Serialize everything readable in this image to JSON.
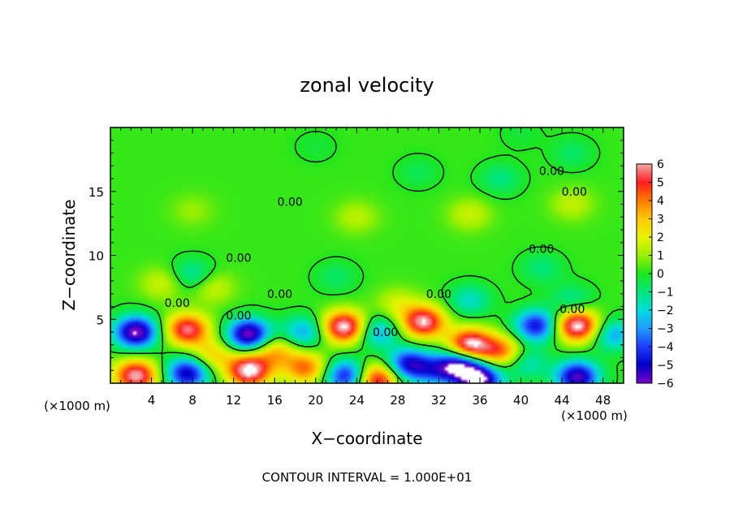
{
  "chart_data": {
    "type": "heatmap",
    "title": "zonal velocity",
    "xlabel": "X−coordinate",
    "ylabel": "Z−coordinate",
    "x_unit_left": "(×1000 m)",
    "x_unit_right": "(×1000 m)",
    "footer": "CONTOUR INTERVAL = 1.000E+01",
    "xlim": [
      0,
      50
    ],
    "ylim": [
      0,
      20
    ],
    "x_ticks": [
      4,
      8,
      12,
      16,
      20,
      24,
      28,
      32,
      36,
      40,
      44,
      48
    ],
    "x_tick_labels": [
      "4",
      "8",
      "12",
      "16",
      "20",
      "24",
      "28",
      "32",
      "36",
      "40",
      "44",
      "48"
    ],
    "y_ticks": [
      5,
      10,
      15
    ],
    "y_tick_labels": [
      "5",
      "10",
      "15"
    ],
    "colorbar": {
      "min": -6,
      "max": 6,
      "tick_labels": [
        "6",
        "5",
        "4",
        "3",
        "2",
        "1",
        "0",
        "−1",
        "−2",
        "−3",
        "−4",
        "−5",
        "−6"
      ],
      "colors": [
        "#f3a9a9",
        "#ff1e1e",
        "#ff7a00",
        "#ffc800",
        "#e6f500",
        "#9bf000",
        "#1ee61e",
        "#00e67a",
        "#00dcdc",
        "#1e9cff",
        "#1e3cff",
        "#0000c8",
        "#7800c8"
      ]
    },
    "contour_label": "0.00",
    "field": {
      "background": 0.2,
      "blobs": [
        {
          "x": 2.5,
          "z": 4.0,
          "v": -6.5
        },
        {
          "x": 7.5,
          "z": 4.2,
          "v": 5.5
        },
        {
          "x": 13.5,
          "z": 3.8,
          "v": -6.5
        },
        {
          "x": 18.8,
          "z": 4.0,
          "v": -3.0
        },
        {
          "x": 22.8,
          "z": 4.4,
          "v": 6.5
        },
        {
          "x": 26.0,
          "z": 4.0,
          "v": -3.0
        },
        {
          "x": 30.5,
          "z": 4.8,
          "v": 6.0
        },
        {
          "x": 35.0,
          "z": 3.0,
          "v": 6.5
        },
        {
          "x": 38.0,
          "z": 2.5,
          "v": 4.0
        },
        {
          "x": 41.5,
          "z": 4.5,
          "v": -5.0
        },
        {
          "x": 45.5,
          "z": 4.5,
          "v": 6.5
        },
        {
          "x": 49.0,
          "z": 3.8,
          "v": -3.0
        },
        {
          "x": 2.5,
          "z": 0.6,
          "v": 6.0
        },
        {
          "x": 7.5,
          "z": 0.8,
          "v": -5.5
        },
        {
          "x": 13.5,
          "z": 1.0,
          "v": 6.5
        },
        {
          "x": 19.0,
          "z": 1.2,
          "v": 4.0
        },
        {
          "x": 23.0,
          "z": 0.6,
          "v": -5.0
        },
        {
          "x": 26.0,
          "z": 0.3,
          "v": 5.5
        },
        {
          "x": 29.0,
          "z": 1.5,
          "v": -5.0
        },
        {
          "x": 31.5,
          "z": 1.0,
          "v": -3.0
        },
        {
          "x": 34.0,
          "z": 1.4,
          "v": -6.0
        },
        {
          "x": 36.0,
          "z": 0.3,
          "v": -6.5
        },
        {
          "x": 40.5,
          "z": 1.6,
          "v": -2.0
        },
        {
          "x": 45.5,
          "z": 0.5,
          "v": -6.0
        },
        {
          "x": 10.0,
          "z": 2.2,
          "v": 2.5
        },
        {
          "x": 16.0,
          "z": 2.5,
          "v": 3.0
        },
        {
          "x": 28.0,
          "z": 6.2,
          "v": 1.5
        },
        {
          "x": 10.0,
          "z": 7.5,
          "v": 1.5
        },
        {
          "x": 5.0,
          "z": 7.8,
          "v": 1.5
        },
        {
          "x": 35.0,
          "z": 6.5,
          "v": -2.0
        },
        {
          "x": 8.0,
          "z": 8.5,
          "v": -1.8
        },
        {
          "x": 22.0,
          "z": 8.3,
          "v": -1.0
        },
        {
          "x": 45.0,
          "z": 6.5,
          "v": -1.5
        },
        {
          "x": 42.0,
          "z": 9.0,
          "v": -1.2
        },
        {
          "x": 35.0,
          "z": 13.2,
          "v": 1.4
        },
        {
          "x": 24.0,
          "z": 13.0,
          "v": 1.2
        },
        {
          "x": 45.0,
          "z": 14.0,
          "v": 1.3
        },
        {
          "x": 8.0,
          "z": 13.5,
          "v": 0.8
        },
        {
          "x": 38.0,
          "z": 16.0,
          "v": -1.3
        },
        {
          "x": 30.0,
          "z": 16.5,
          "v": -0.8
        },
        {
          "x": 45.0,
          "z": 18.0,
          "v": -1.0
        },
        {
          "x": 20.0,
          "z": 18.5,
          "v": -0.5
        },
        {
          "x": 40.0,
          "z": 19.5,
          "v": -0.5
        }
      ]
    },
    "contour_labels": [
      {
        "x": 6.5,
        "z": 6.3
      },
      {
        "x": 12.5,
        "z": 5.3
      },
      {
        "x": 16.5,
        "z": 7.0
      },
      {
        "x": 12.5,
        "z": 9.8
      },
      {
        "x": 17.5,
        "z": 14.2
      },
      {
        "x": 32.0,
        "z": 7.0
      },
      {
        "x": 42.0,
        "z": 10.5
      },
      {
        "x": 45.0,
        "z": 5.8
      },
      {
        "x": 43.0,
        "z": 16.6
      },
      {
        "x": 45.2,
        "z": 15.0
      },
      {
        "x": 26.8,
        "z": 4.0
      }
    ]
  }
}
